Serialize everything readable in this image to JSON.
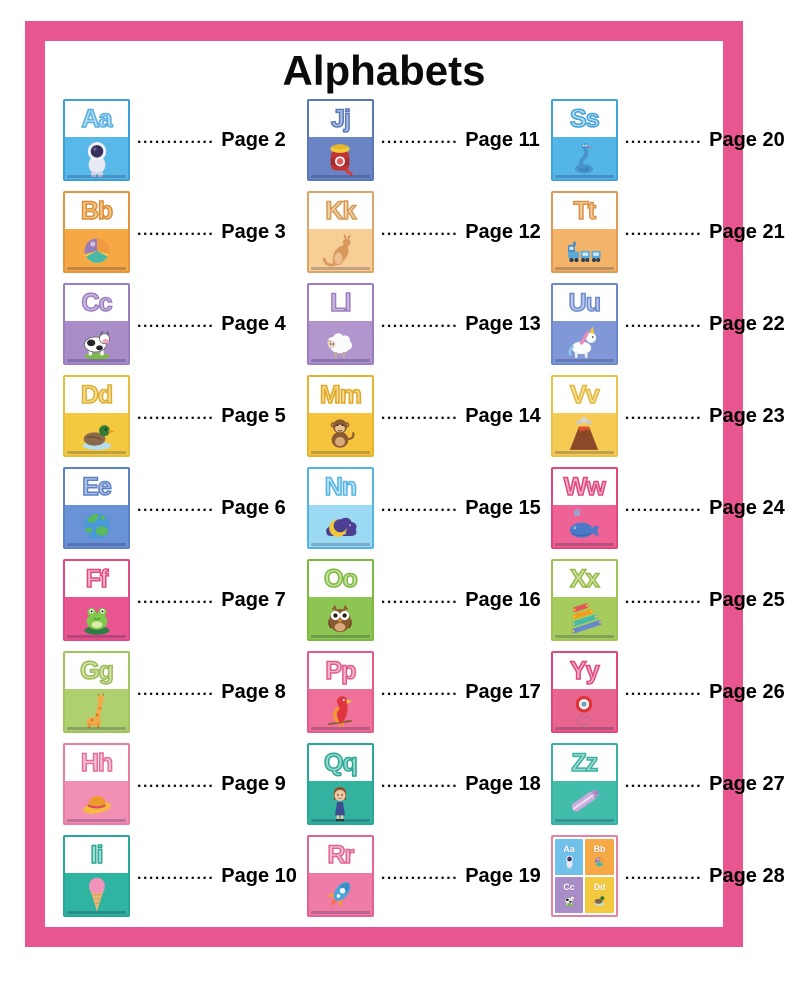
{
  "page": {
    "title": "Alphabets",
    "frame_color": "#e7568e",
    "background": "#ffffff",
    "leader_dots": "............."
  },
  "toc": {
    "entries": [
      {
        "letters": "Aa",
        "icon": "astronaut-icon",
        "page_label": "Page 2",
        "border": "#3f9fd8",
        "letter_fill": "#b8e0f6",
        "letter_stroke": "#54aede",
        "bg": "#58b9e9"
      },
      {
        "letters": "Bb",
        "icon": "ball-icon",
        "page_label": "Page 3",
        "border": "#e2953f",
        "letter_fill": "#f6c98e",
        "letter_stroke": "#db8c34",
        "bg": "#f5a843"
      },
      {
        "letters": "Cc",
        "icon": "cow-icon",
        "page_label": "Page 4",
        "border": "#9c7ec2",
        "letter_fill": "#cdbade",
        "letter_stroke": "#9c7ec2",
        "bg": "#a98dc9"
      },
      {
        "letters": "Dd",
        "icon": "duck-icon",
        "page_label": "Page 5",
        "border": "#e7bd3f",
        "letter_fill": "#f4dc94",
        "letter_stroke": "#ddb032",
        "bg": "#f3c93f"
      },
      {
        "letters": "Ee",
        "icon": "earth-icon",
        "page_label": "Page 6",
        "border": "#5d81c5",
        "letter_fill": "#b3c4e6",
        "letter_stroke": "#5d81c5",
        "bg": "#6a92d6"
      },
      {
        "letters": "Ff",
        "icon": "frog-icon",
        "page_label": "Page 7",
        "border": "#e04a80",
        "letter_fill": "#f5b8ce",
        "letter_stroke": "#e04a80",
        "bg": "#e85590"
      },
      {
        "letters": "Gg",
        "icon": "giraffe-icon",
        "page_label": "Page 8",
        "border": "#a3c361",
        "letter_fill": "#d3e3ae",
        "letter_stroke": "#9bbb55",
        "bg": "#aed06f"
      },
      {
        "letters": "Hh",
        "icon": "hat-icon",
        "page_label": "Page 9",
        "border": "#e87ea6",
        "letter_fill": "#f7c3d6",
        "letter_stroke": "#e66d9b",
        "bg": "#f18fb5"
      },
      {
        "letters": "Ii",
        "icon": "ice-cream-icon",
        "page_label": "Page 10",
        "border": "#2aa897",
        "letter_fill": "#a8dcd2",
        "letter_stroke": "#2aa897",
        "bg": "#30b4a2"
      },
      {
        "letters": "Jj",
        "icon": "jam-icon",
        "page_label": "Page 11",
        "border": "#5a78b8",
        "letter_fill": "#b0bede",
        "letter_stroke": "#5a78b8",
        "bg": "#6a84c6"
      },
      {
        "letters": "Kk",
        "icon": "kangaroo-icon",
        "page_label": "Page 12",
        "border": "#dda668",
        "letter_fill": "#f0d0a8",
        "letter_stroke": "#d49a54",
        "bg": "#f7cf96"
      },
      {
        "letters": "Ll",
        "icon": "lamb-icon",
        "page_label": "Page 13",
        "border": "#9c7ec2",
        "letter_fill": "#cdbade",
        "letter_stroke": "#9c7ec2",
        "bg": "#b295cd"
      },
      {
        "letters": "Mm",
        "icon": "monkey-icon",
        "page_label": "Page 14",
        "border": "#e8b232",
        "letter_fill": "#f6d98a",
        "letter_stroke": "#e0a828",
        "bg": "#f6c43c"
      },
      {
        "letters": "Nn",
        "icon": "night-icon",
        "page_label": "Page 15",
        "border": "#55b3e2",
        "letter_fill": "#bfe4f7",
        "letter_stroke": "#55b3e2",
        "bg": "#9cd9f3"
      },
      {
        "letters": "Oo",
        "icon": "owl-icon",
        "page_label": "Page 16",
        "border": "#7cba40",
        "letter_fill": "#c6e2a0",
        "letter_stroke": "#7cba40",
        "bg": "#8cc551"
      },
      {
        "letters": "Pp",
        "icon": "parrot-icon",
        "page_label": "Page 17",
        "border": "#e25c8c",
        "letter_fill": "#f5b8ce",
        "letter_stroke": "#e25c8c",
        "bg": "#ef719a"
      },
      {
        "letters": "Qq",
        "icon": "queen-icon",
        "page_label": "Page 18",
        "border": "#2aa897",
        "letter_fill": "#a0d8cc",
        "letter_stroke": "#2aa897",
        "bg": "#34b2a0"
      },
      {
        "letters": "Rr",
        "icon": "rocket-icon",
        "page_label": "Page 19",
        "border": "#e26494",
        "letter_fill": "#f5bcd2",
        "letter_stroke": "#e26494",
        "bg": "#ee7ca7"
      },
      {
        "letters": "Ss",
        "icon": "snake-icon",
        "page_label": "Page 20",
        "border": "#42a2da",
        "letter_fill": "#b8def2",
        "letter_stroke": "#42a2da",
        "bg": "#54b5e7"
      },
      {
        "letters": "Tt",
        "icon": "train-icon",
        "page_label": "Page 21",
        "border": "#e09a58",
        "letter_fill": "#f2cfa0",
        "letter_stroke": "#dd9148",
        "bg": "#f3b46a"
      },
      {
        "letters": "Uu",
        "icon": "unicorn-icon",
        "page_label": "Page 22",
        "border": "#6b8ace",
        "letter_fill": "#bcc9e8",
        "letter_stroke": "#6b8ace",
        "bg": "#8098d8"
      },
      {
        "letters": "Vv",
        "icon": "volcano-icon",
        "page_label": "Page 23",
        "border": "#eac24a",
        "letter_fill": "#f6e0a0",
        "letter_stroke": "#e2b838",
        "bg": "#f6cb53"
      },
      {
        "letters": "Ww",
        "icon": "whale-icon",
        "page_label": "Page 24",
        "border": "#e0477d",
        "letter_fill": "#f5b0ca",
        "letter_stroke": "#e0477d",
        "bg": "#ee6295"
      },
      {
        "letters": "Xx",
        "icon": "xylophone-icon",
        "page_label": "Page 25",
        "border": "#9ec253",
        "letter_fill": "#d0e2a6",
        "letter_stroke": "#96ba48",
        "bg": "#a7cc5e"
      },
      {
        "letters": "Yy",
        "icon": "yoyo-icon",
        "page_label": "Page 26",
        "border": "#e0477d",
        "letter_fill": "#f5b0ca",
        "letter_stroke": "#e0477d",
        "bg": "#e8658f"
      },
      {
        "letters": "Zz",
        "icon": "zipper-icon",
        "page_label": "Page 27",
        "border": "#3ab2a2",
        "letter_fill": "#a8dcd4",
        "letter_stroke": "#3ab2a2",
        "bg": "#42bdac"
      },
      {
        "type": "grid",
        "letters": "",
        "icon": "mini-grid",
        "page_label": "Page 28",
        "border": "#e283a4",
        "quadrants": [
          {
            "letters": "Aa",
            "icon": "astronaut-icon",
            "bg": "#6fc1ea"
          },
          {
            "letters": "Bb",
            "icon": "ball-icon",
            "bg": "#f5a843"
          },
          {
            "letters": "Cc",
            "icon": "cow-icon",
            "bg": "#a98dc9"
          },
          {
            "letters": "Dd",
            "icon": "duck-icon",
            "bg": "#f3c93f"
          }
        ]
      }
    ]
  }
}
